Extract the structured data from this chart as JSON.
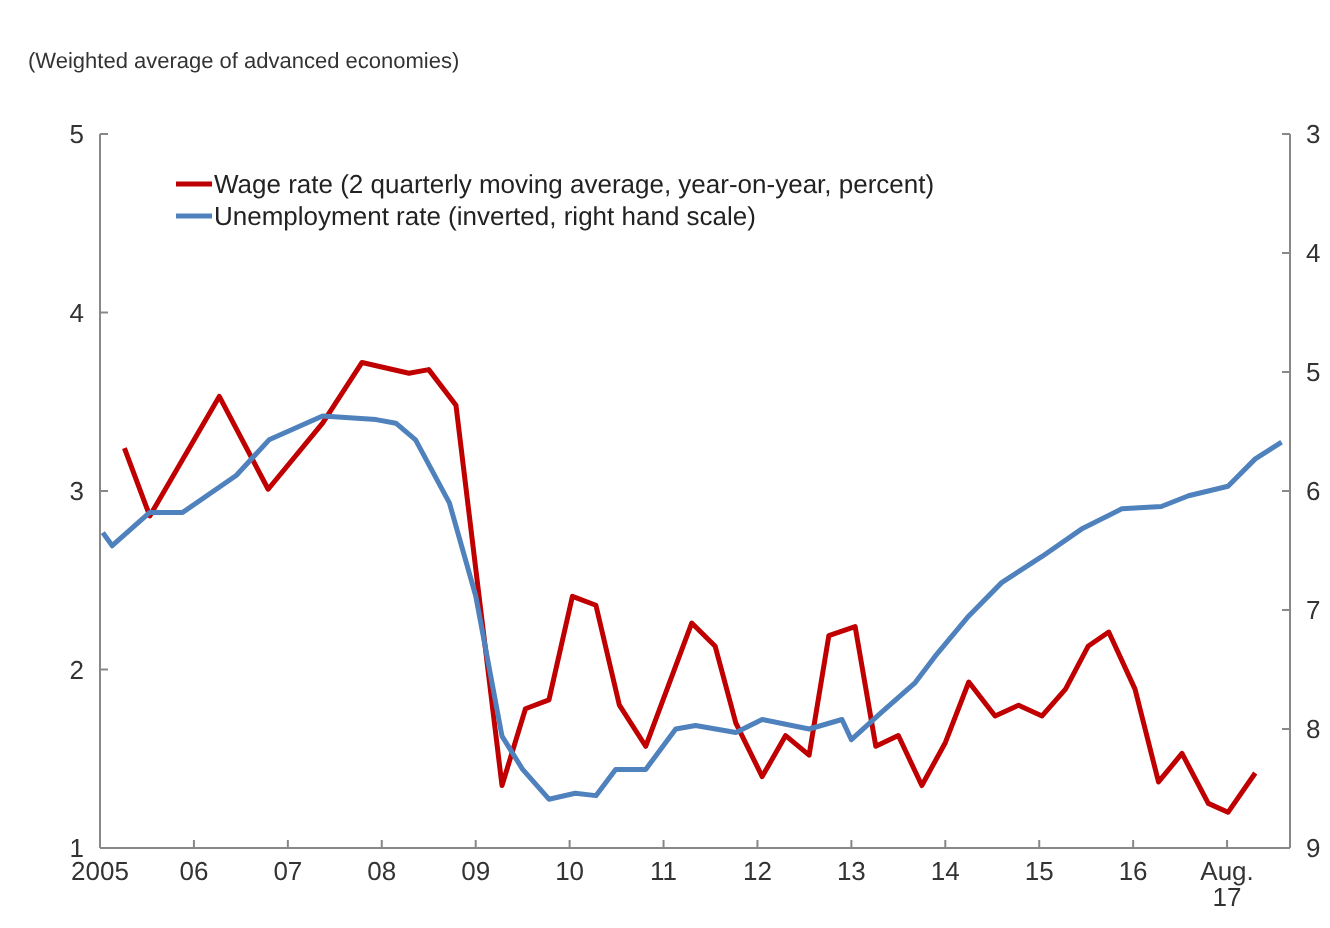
{
  "chart_data": {
    "type": "line",
    "subtitle": "(Weighted average of advanced economies)",
    "xlim": [
      2005,
      2017.67
    ],
    "xticks": [
      {
        "value": 2005,
        "label": "2005"
      },
      {
        "value": 2006,
        "label": "06"
      },
      {
        "value": 2007,
        "label": "07"
      },
      {
        "value": 2008,
        "label": "08"
      },
      {
        "value": 2009,
        "label": "09"
      },
      {
        "value": 2010,
        "label": "10"
      },
      {
        "value": 2011,
        "label": "11"
      },
      {
        "value": 2012,
        "label": "12"
      },
      {
        "value": 2013,
        "label": "13"
      },
      {
        "value": 2014,
        "label": "14"
      },
      {
        "value": 2015,
        "label": "15"
      },
      {
        "value": 2016,
        "label": "16"
      },
      {
        "value": 2017,
        "label": "Aug. 17"
      }
    ],
    "ylim": [
      1,
      5
    ],
    "yticks": [
      1,
      2,
      3,
      4,
      5
    ],
    "y2lim": [
      9,
      3
    ],
    "y2ticks": [
      3,
      4,
      5,
      6,
      7,
      8,
      9
    ],
    "legend": "top",
    "grid": false,
    "marker": "none",
    "line_style": "solid",
    "series": [
      {
        "name": "Wage rate (2 quarterly moving average, year-on-year, percent)",
        "color": "#c00000",
        "x": [
          2005.26,
          2005.53,
          2006.27,
          2006.79,
          2007.37,
          2007.79,
          2008.29,
          2008.5,
          2008.79,
          2009.28,
          2009.53,
          2009.78,
          2010.03,
          2010.28,
          2010.53,
          2010.81,
          2011.3,
          2011.55,
          2011.77,
          2012.05,
          2012.3,
          2012.55,
          2012.76,
          2013.04,
          2013.26,
          2013.5,
          2013.75,
          2014.0,
          2014.25,
          2014.53,
          2014.78,
          2015.03,
          2015.28,
          2015.52,
          2015.74,
          2016.02,
          2016.27,
          2016.52,
          2016.8,
          2017.01,
          2017.3
        ],
        "values": [
          3.24,
          2.86,
          3.53,
          3.01,
          3.38,
          3.72,
          3.66,
          3.68,
          3.48,
          1.35,
          1.78,
          1.83,
          2.41,
          2.36,
          1.8,
          1.57,
          2.26,
          2.13,
          1.7,
          1.4,
          1.63,
          1.52,
          2.19,
          2.24,
          1.57,
          1.63,
          1.35,
          1.59,
          1.93,
          1.74,
          1.8,
          1.74,
          1.89,
          2.13,
          2.21,
          1.89,
          1.37,
          1.53,
          1.25,
          1.2,
          1.42
        ]
      },
      {
        "name": "Unemployment rate (inverted, right hand scale)",
        "color": "#4f81bd",
        "axis": "y2",
        "x": [
          2005.03,
          2005.13,
          2005.53,
          2005.88,
          2006.45,
          2006.8,
          2007.37,
          2007.94,
          2008.15,
          2008.36,
          2008.72,
          2009.0,
          2009.28,
          2009.5,
          2009.78,
          2010.06,
          2010.28,
          2010.49,
          2010.81,
          2011.13,
          2011.34,
          2011.77,
          2012.05,
          2012.55,
          2012.9,
          2013.0,
          2013.32,
          2013.68,
          2013.89,
          2014.25,
          2014.6,
          2015.03,
          2015.45,
          2015.88,
          2016.3,
          2016.59,
          2017.01,
          2017.3,
          2017.58
        ],
        "values": [
          6.35,
          6.46,
          6.18,
          6.18,
          5.87,
          5.57,
          5.37,
          5.4,
          5.43,
          5.57,
          6.1,
          6.88,
          8.06,
          8.34,
          8.59,
          8.54,
          8.56,
          8.34,
          8.34,
          8.0,
          7.97,
          8.03,
          7.92,
          8.0,
          7.92,
          8.09,
          7.86,
          7.61,
          7.39,
          7.05,
          6.77,
          6.55,
          6.32,
          6.15,
          6.13,
          6.04,
          5.96,
          5.73,
          5.59
        ]
      }
    ]
  }
}
